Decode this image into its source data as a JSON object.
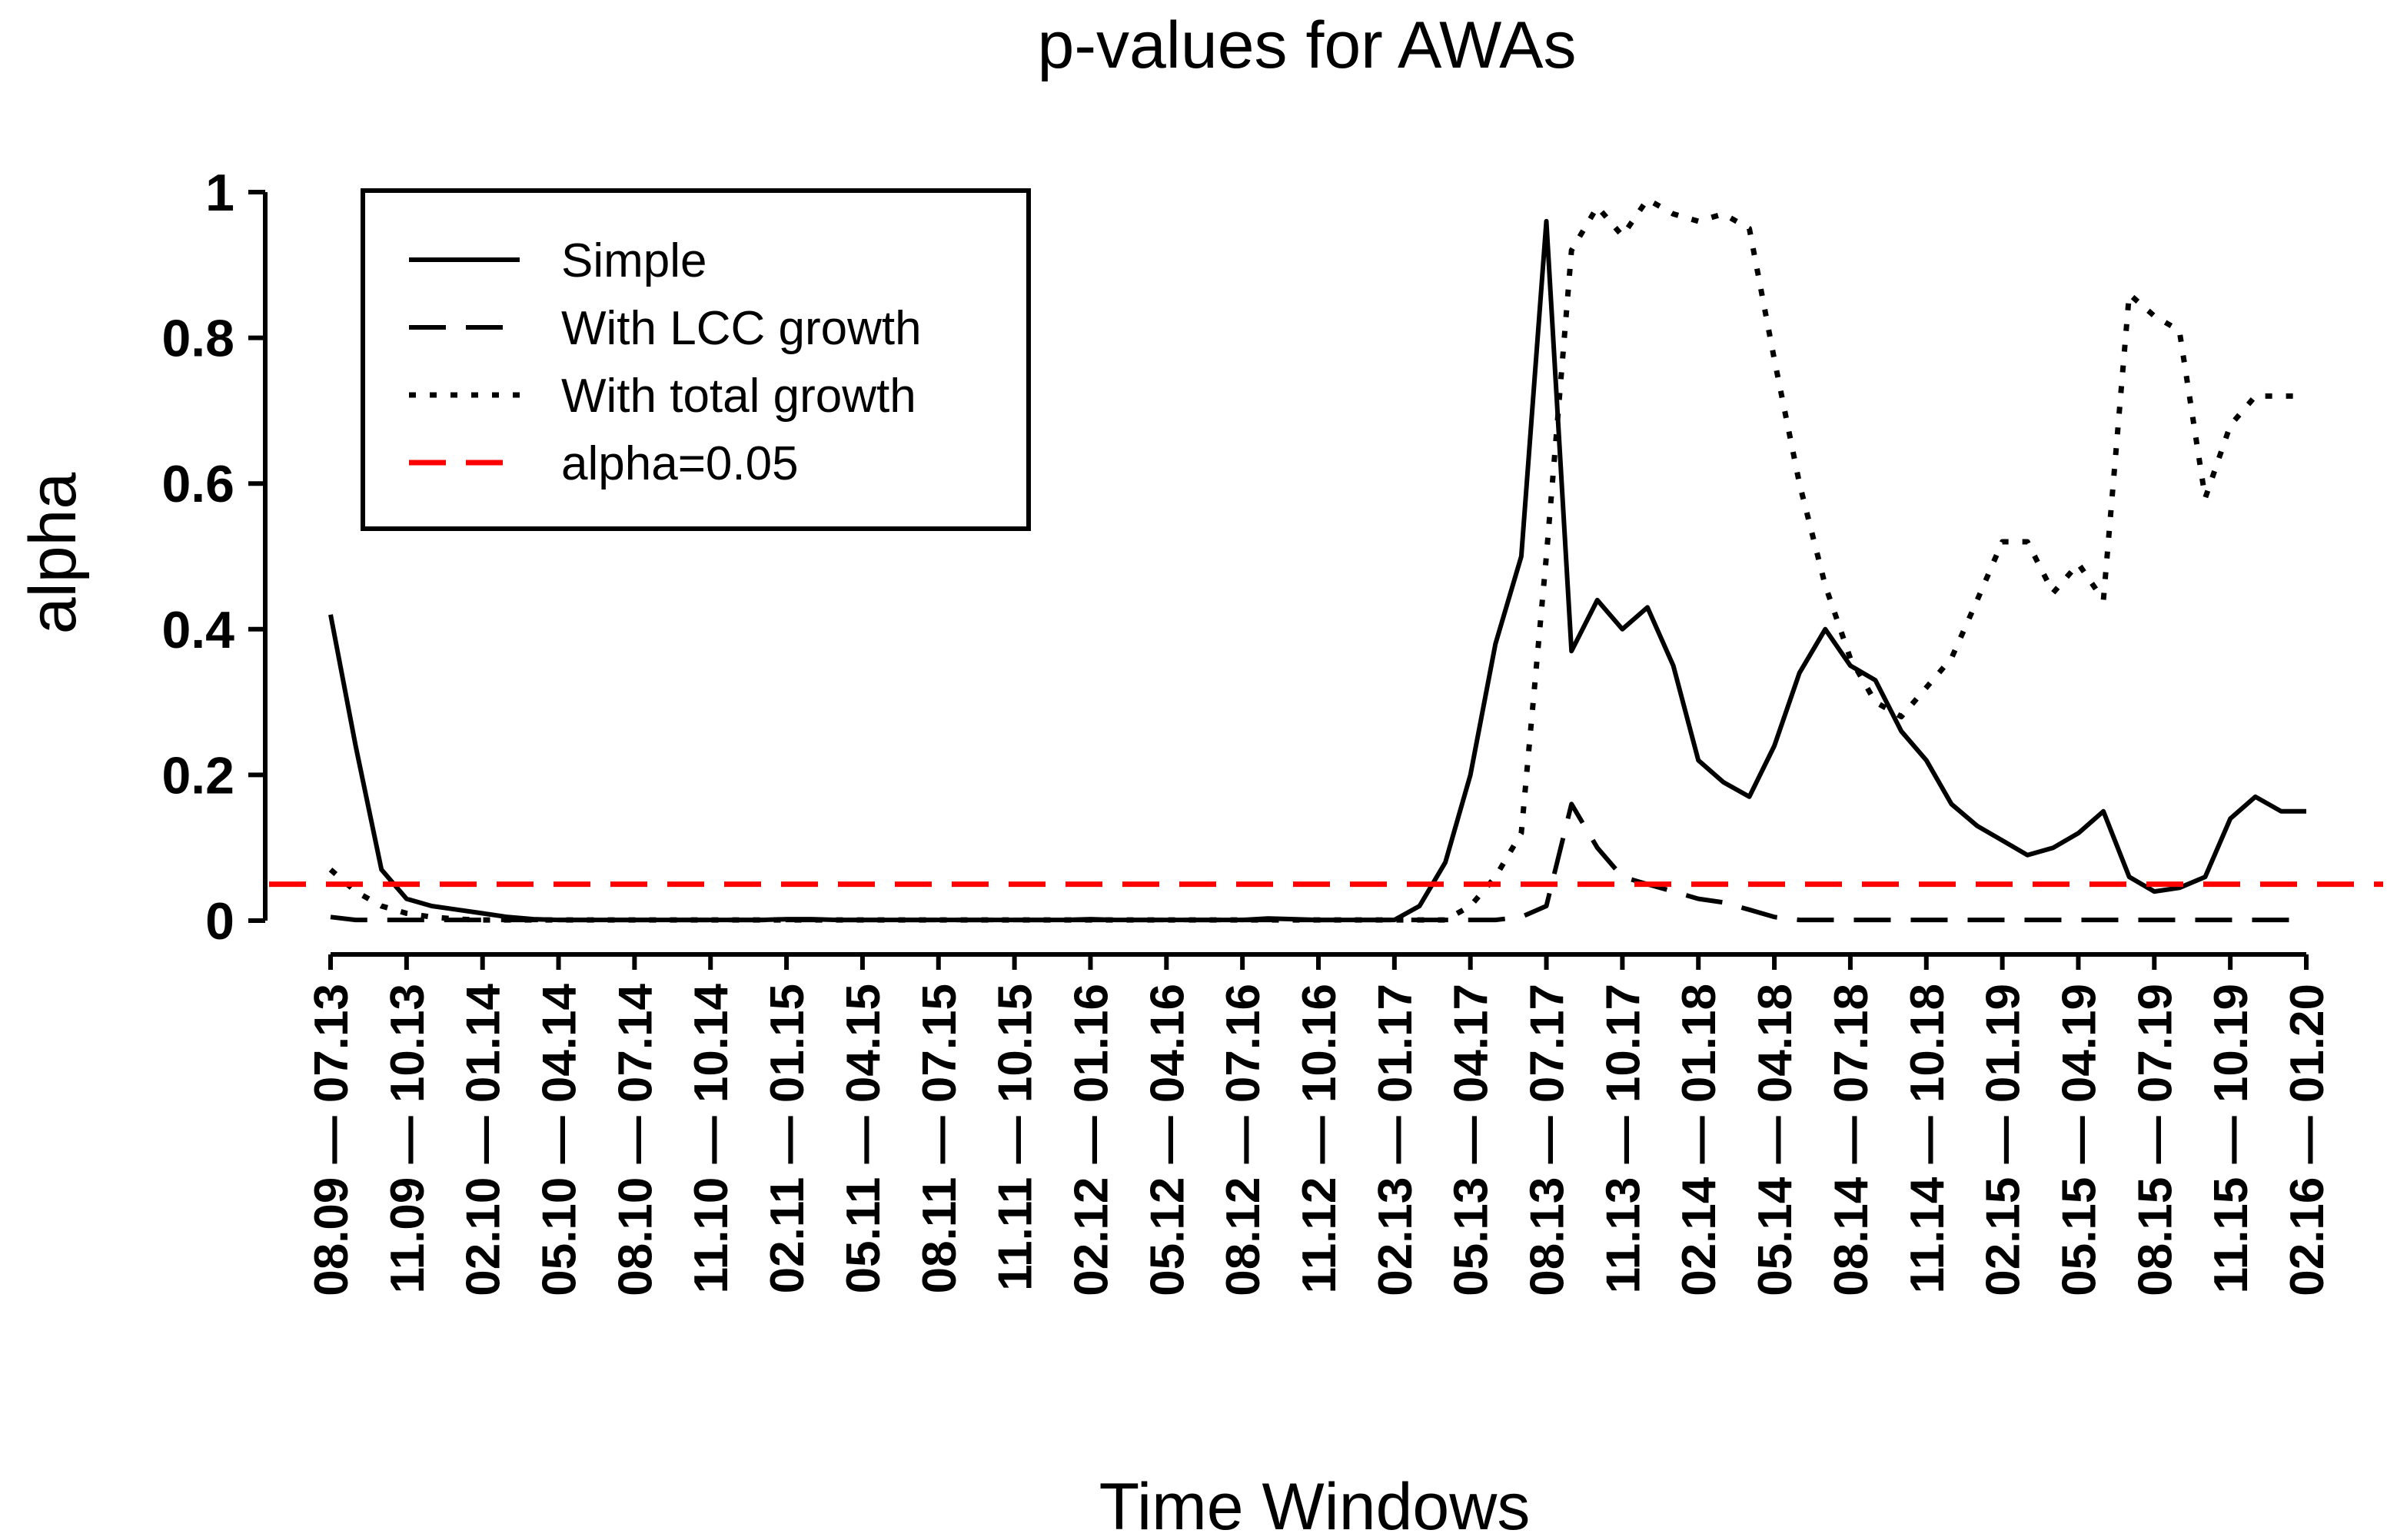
{
  "chart_data": {
    "type": "line",
    "title": "p-values for AWAs",
    "xlabel": "Time Windows",
    "ylabel": "alpha",
    "ylim": [
      0,
      1
    ],
    "yticks": [
      0,
      0.2,
      0.4,
      0.6,
      0.8,
      1
    ],
    "ytick_labels": [
      "0",
      "0.2",
      "0.4",
      "0.6",
      "0.8",
      "1"
    ],
    "legend_position": "top-left",
    "categories": [
      "08.09 — 07.13",
      "11.09 — 10.13",
      "02.10 — 01.14",
      "05.10 — 04.14",
      "08.10 — 07.14",
      "11.10 — 10.14",
      "02.11 — 01.15",
      "05.11 — 04.15",
      "08.11 — 07.15",
      "11.11 — 10.15",
      "02.12 — 01.16",
      "05.12 — 04.16",
      "08.12 — 07.16",
      "11.12 — 10.16",
      "02.13 — 01.17",
      "05.13 — 04.17",
      "08.13 — 07.17",
      "11.13 — 10.17",
      "02.14 — 01.18",
      "05.14 — 04.18",
      "08.14 — 07.18",
      "11.14 — 10.18",
      "02.15 — 01.19",
      "05.15 — 04.19",
      "08.15 — 07.19",
      "11.15 — 10.19",
      "02.16 — 01.20"
    ],
    "x": [
      0,
      0.33,
      0.67,
      1,
      1.33,
      1.67,
      2,
      2.33,
      2.67,
      3,
      3.33,
      3.67,
      4,
      4.33,
      4.67,
      5,
      5.33,
      5.67,
      6,
      6.33,
      6.67,
      7,
      7.33,
      7.67,
      8,
      8.33,
      8.67,
      9,
      9.33,
      9.67,
      10,
      10.33,
      10.67,
      11,
      11.33,
      11.67,
      12,
      12.33,
      12.67,
      13,
      13.33,
      13.67,
      14,
      14.33,
      14.67,
      15,
      15.33,
      15.67,
      16,
      16.33,
      16.67,
      17,
      17.33,
      17.67,
      18,
      18.33,
      18.67,
      19,
      19.33,
      19.67,
      20,
      20.33,
      20.67,
      21,
      21.33,
      21.67,
      22,
      22.33,
      22.67,
      23,
      23.33,
      23.67,
      24,
      24.33,
      24.67,
      25,
      25.33,
      25.67,
      26
    ],
    "series": [
      {
        "name": "Simple",
        "color": "#000000",
        "dash": "solid",
        "values": [
          0.42,
          0.24,
          0.07,
          0.03,
          0.02,
          0.015,
          0.01,
          0.005,
          0.002,
          0.001,
          0.001,
          0.001,
          0.001,
          0.001,
          0.001,
          0.001,
          0.001,
          0.001,
          0.002,
          0.002,
          0.001,
          0.001,
          0.001,
          0.001,
          0.001,
          0.001,
          0.001,
          0.001,
          0.001,
          0.001,
          0.002,
          0.001,
          0.001,
          0.001,
          0.001,
          0.001,
          0.001,
          0.003,
          0.002,
          0.001,
          0.001,
          0.001,
          0.001,
          0.02,
          0.08,
          0.2,
          0.38,
          0.5,
          0.96,
          0.37,
          0.44,
          0.4,
          0.43,
          0.35,
          0.22,
          0.19,
          0.17,
          0.24,
          0.34,
          0.4,
          0.35,
          0.33,
          0.26,
          0.22,
          0.16,
          0.13,
          0.11,
          0.09,
          0.1,
          0.12,
          0.15,
          0.06,
          0.04,
          0.045,
          0.06,
          0.14,
          0.17,
          0.15,
          0.15
        ]
      },
      {
        "name": "With LCC growth",
        "color": "#000000",
        "dash": "long-dash",
        "values": [
          0.005,
          0.001,
          0.001,
          0.001,
          0.001,
          0.001,
          0.001,
          0.001,
          0.001,
          0.001,
          0.001,
          0.001,
          0.001,
          0.001,
          0.001,
          0.001,
          0.001,
          0.001,
          0.001,
          0.001,
          0.001,
          0.001,
          0.001,
          0.001,
          0.001,
          0.001,
          0.001,
          0.001,
          0.001,
          0.001,
          0.001,
          0.001,
          0.001,
          0.001,
          0.001,
          0.001,
          0.001,
          0.001,
          0.001,
          0.001,
          0.001,
          0.001,
          0.001,
          0.001,
          0.001,
          0.001,
          0.001,
          0.005,
          0.02,
          0.16,
          0.1,
          0.06,
          0.05,
          0.04,
          0.03,
          0.025,
          0.015,
          0.005,
          0.001,
          0.001,
          0.001,
          0.001,
          0.001,
          0.001,
          0.001,
          0.001,
          0.001,
          0.001,
          0.001,
          0.001,
          0.001,
          0.001,
          0.001,
          0.001,
          0.001,
          0.001,
          0.001,
          0.001,
          0.001
        ]
      },
      {
        "name": "With total growth",
        "color": "#000000",
        "dash": "dotted",
        "values": [
          0.07,
          0.04,
          0.02,
          0.01,
          0.005,
          0.002,
          0.001,
          0.001,
          0.001,
          0.001,
          0.001,
          0.001,
          0.001,
          0.001,
          0.001,
          0.001,
          0.001,
          0.001,
          0.001,
          0.001,
          0.001,
          0.001,
          0.001,
          0.001,
          0.001,
          0.001,
          0.001,
          0.001,
          0.001,
          0.001,
          0.001,
          0.001,
          0.001,
          0.001,
          0.001,
          0.001,
          0.001,
          0.001,
          0.001,
          0.001,
          0.001,
          0.001,
          0.001,
          0.001,
          0.001,
          0.02,
          0.06,
          0.12,
          0.5,
          0.92,
          0.98,
          0.94,
          0.99,
          0.97,
          0.96,
          0.97,
          0.95,
          0.77,
          0.6,
          0.46,
          0.36,
          0.3,
          0.28,
          0.32,
          0.36,
          0.44,
          0.52,
          0.52,
          0.45,
          0.49,
          0.44,
          0.86,
          0.83,
          0.81,
          0.58,
          0.68,
          0.72,
          0.72,
          0.72
        ]
      },
      {
        "name": "alpha=0.05",
        "color": "#ff0000",
        "dash": "long-dash",
        "values": "constant",
        "constant": 0.05
      }
    ]
  }
}
